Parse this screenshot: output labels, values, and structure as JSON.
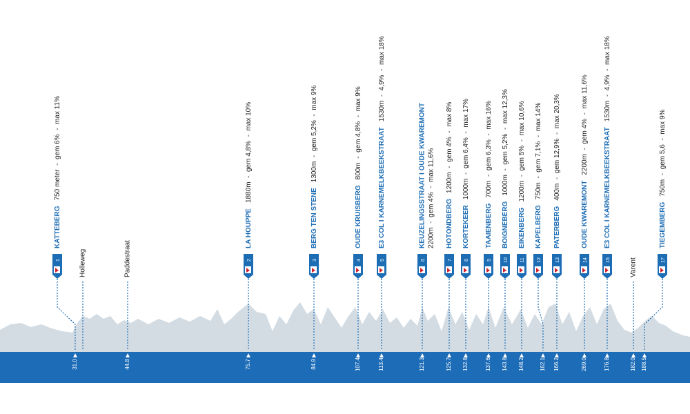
{
  "climbs": [
    {
      "number": "1",
      "name": "KATTEBERG",
      "details": "750 meter  -  gem 6%  -  max 11%",
      "km": "31.0"
    },
    {
      "number": "2",
      "name": "LA HOUPPE",
      "details": "1880m  -  gem 4,8%  -  max 10%",
      "km": "75.7"
    },
    {
      "number": "3",
      "name": "BERG TEN STENE",
      "details": "1300m  -  gem 5,2%  -  max 9%",
      "km": "84.9"
    },
    {
      "number": "4",
      "name": "OUDE KRUISBERG",
      "details": "800m  -  gem 4,8%  -  max 9%",
      "km": "107.4"
    },
    {
      "number": "5",
      "name": "E3 COL I KARNEMELKBEEKSTRAAT",
      "details": "1530m  -  4,9%  -  max 18%",
      "km": "113.4"
    },
    {
      "number": "6",
      "name": "KEUZELINGSSTRAAT I OUDE KWAREMONT",
      "details": "2200m  -  gem 4%  -  max 11,6%",
      "km": "121.3"
    },
    {
      "number": "7",
      "name": "HOTONDBERG",
      "details": "1200m  -  gem 4%  -  max 8%",
      "km": "125.7"
    },
    {
      "number": "8",
      "name": "KORTEKEER",
      "details": "1000m  -  gem 6,4%  -  max 17%",
      "km": "132.8"
    },
    {
      "number": "9",
      "name": "TAAIENBERG",
      "details": "700m  -  gem 6,3%  -  max 16%",
      "km": "137.6"
    },
    {
      "number": "10",
      "name": "BOIGNEBERG",
      "details": "1000m  -  gem 5,2%  -  max 12,3%",
      "km": "143.8"
    },
    {
      "number": "11",
      "name": "EIKENBERG",
      "details": "1200m  -  gem 5%  -  max 10,6%",
      "km": "148.2"
    },
    {
      "number": "12",
      "name": "KAPELBERG",
      "details": "750m  -  gem 7,1%  -  max 14%",
      "km": "162.1"
    },
    {
      "number": "13",
      "name": "PATERBERG",
      "details": "400m  -  gem 12,9%  -  max 20,3%",
      "km": "166.2"
    },
    {
      "number": "14",
      "name": "OUDE KWAREMONT",
      "details": "2200m  -  gem 4%  -  max 11,6%",
      "km": "269.0"
    },
    {
      "number": "15",
      "name": "E3 COL I KARNEMELKBEEKSTRAAT",
      "details": "1530m  -  4,9%  -  max 18%",
      "km": "176.8"
    },
    {
      "number": "17",
      "name": "TIEGEMBERG",
      "details": "750m  -  gem 5,6  -  max 9%",
      "km": "188.5"
    }
  ],
  "roads": [
    {
      "name": "Holleweg"
    },
    {
      "name": "Paddestraat",
      "km": "44.8"
    },
    {
      "name": "Varent",
      "km": "182.0"
    }
  ]
}
